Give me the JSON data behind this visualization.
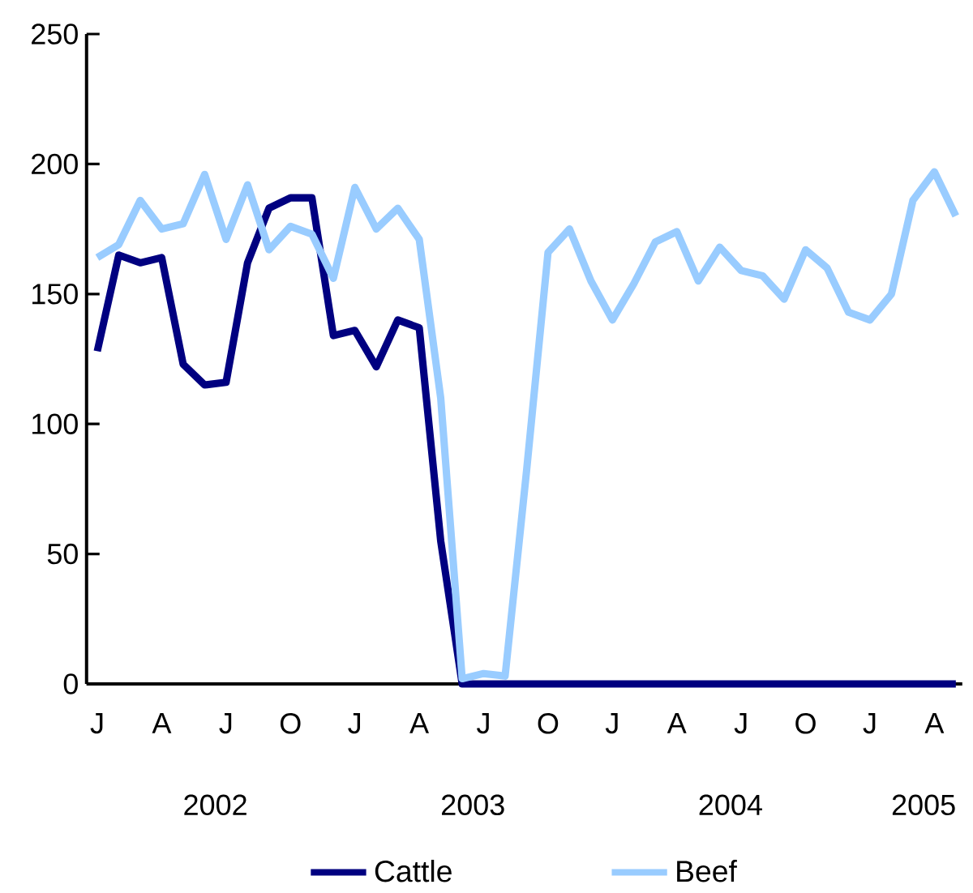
{
  "chart_data": {
    "type": "line",
    "categories": [
      "J",
      null,
      null,
      "A",
      null,
      null,
      "J",
      null,
      null,
      "O",
      null,
      null,
      "J",
      null,
      null,
      "A",
      null,
      null,
      "J",
      null,
      null,
      "O",
      null,
      null,
      "J",
      null,
      null,
      "A",
      null,
      null,
      "J",
      null,
      null,
      "O",
      null,
      null,
      "J",
      null,
      null,
      "A",
      null
    ],
    "series": [
      {
        "name": "Cattle",
        "color": "#000080",
        "values": [
          128,
          165,
          162,
          164,
          123,
          115,
          116,
          162,
          183,
          187,
          187,
          134,
          136,
          122,
          140,
          137,
          55,
          0,
          0,
          0,
          0,
          0,
          0,
          0,
          0,
          0,
          0,
          0,
          0,
          0,
          0,
          0,
          0,
          0,
          0,
          0,
          0,
          0,
          0,
          0,
          0
        ]
      },
      {
        "name": "Beef",
        "color": "#99ccff",
        "values": [
          164,
          169,
          186,
          175,
          177,
          196,
          171,
          192,
          167,
          176,
          173,
          156,
          191,
          175,
          183,
          171,
          110,
          2,
          4,
          3,
          82,
          166,
          175,
          155,
          140,
          154,
          170,
          174,
          155,
          168,
          159,
          157,
          148,
          167,
          160,
          143,
          140,
          150,
          186,
          197,
          180
        ]
      }
    ],
    "ylim": [
      0,
      250
    ],
    "yticks": [
      0,
      50,
      100,
      150,
      200,
      250
    ],
    "annotations": [
      "2002",
      "2003",
      "2004",
      "2005"
    ],
    "grid": false,
    "legend": "bottom",
    "marker": "none",
    "line_style": "solid"
  }
}
